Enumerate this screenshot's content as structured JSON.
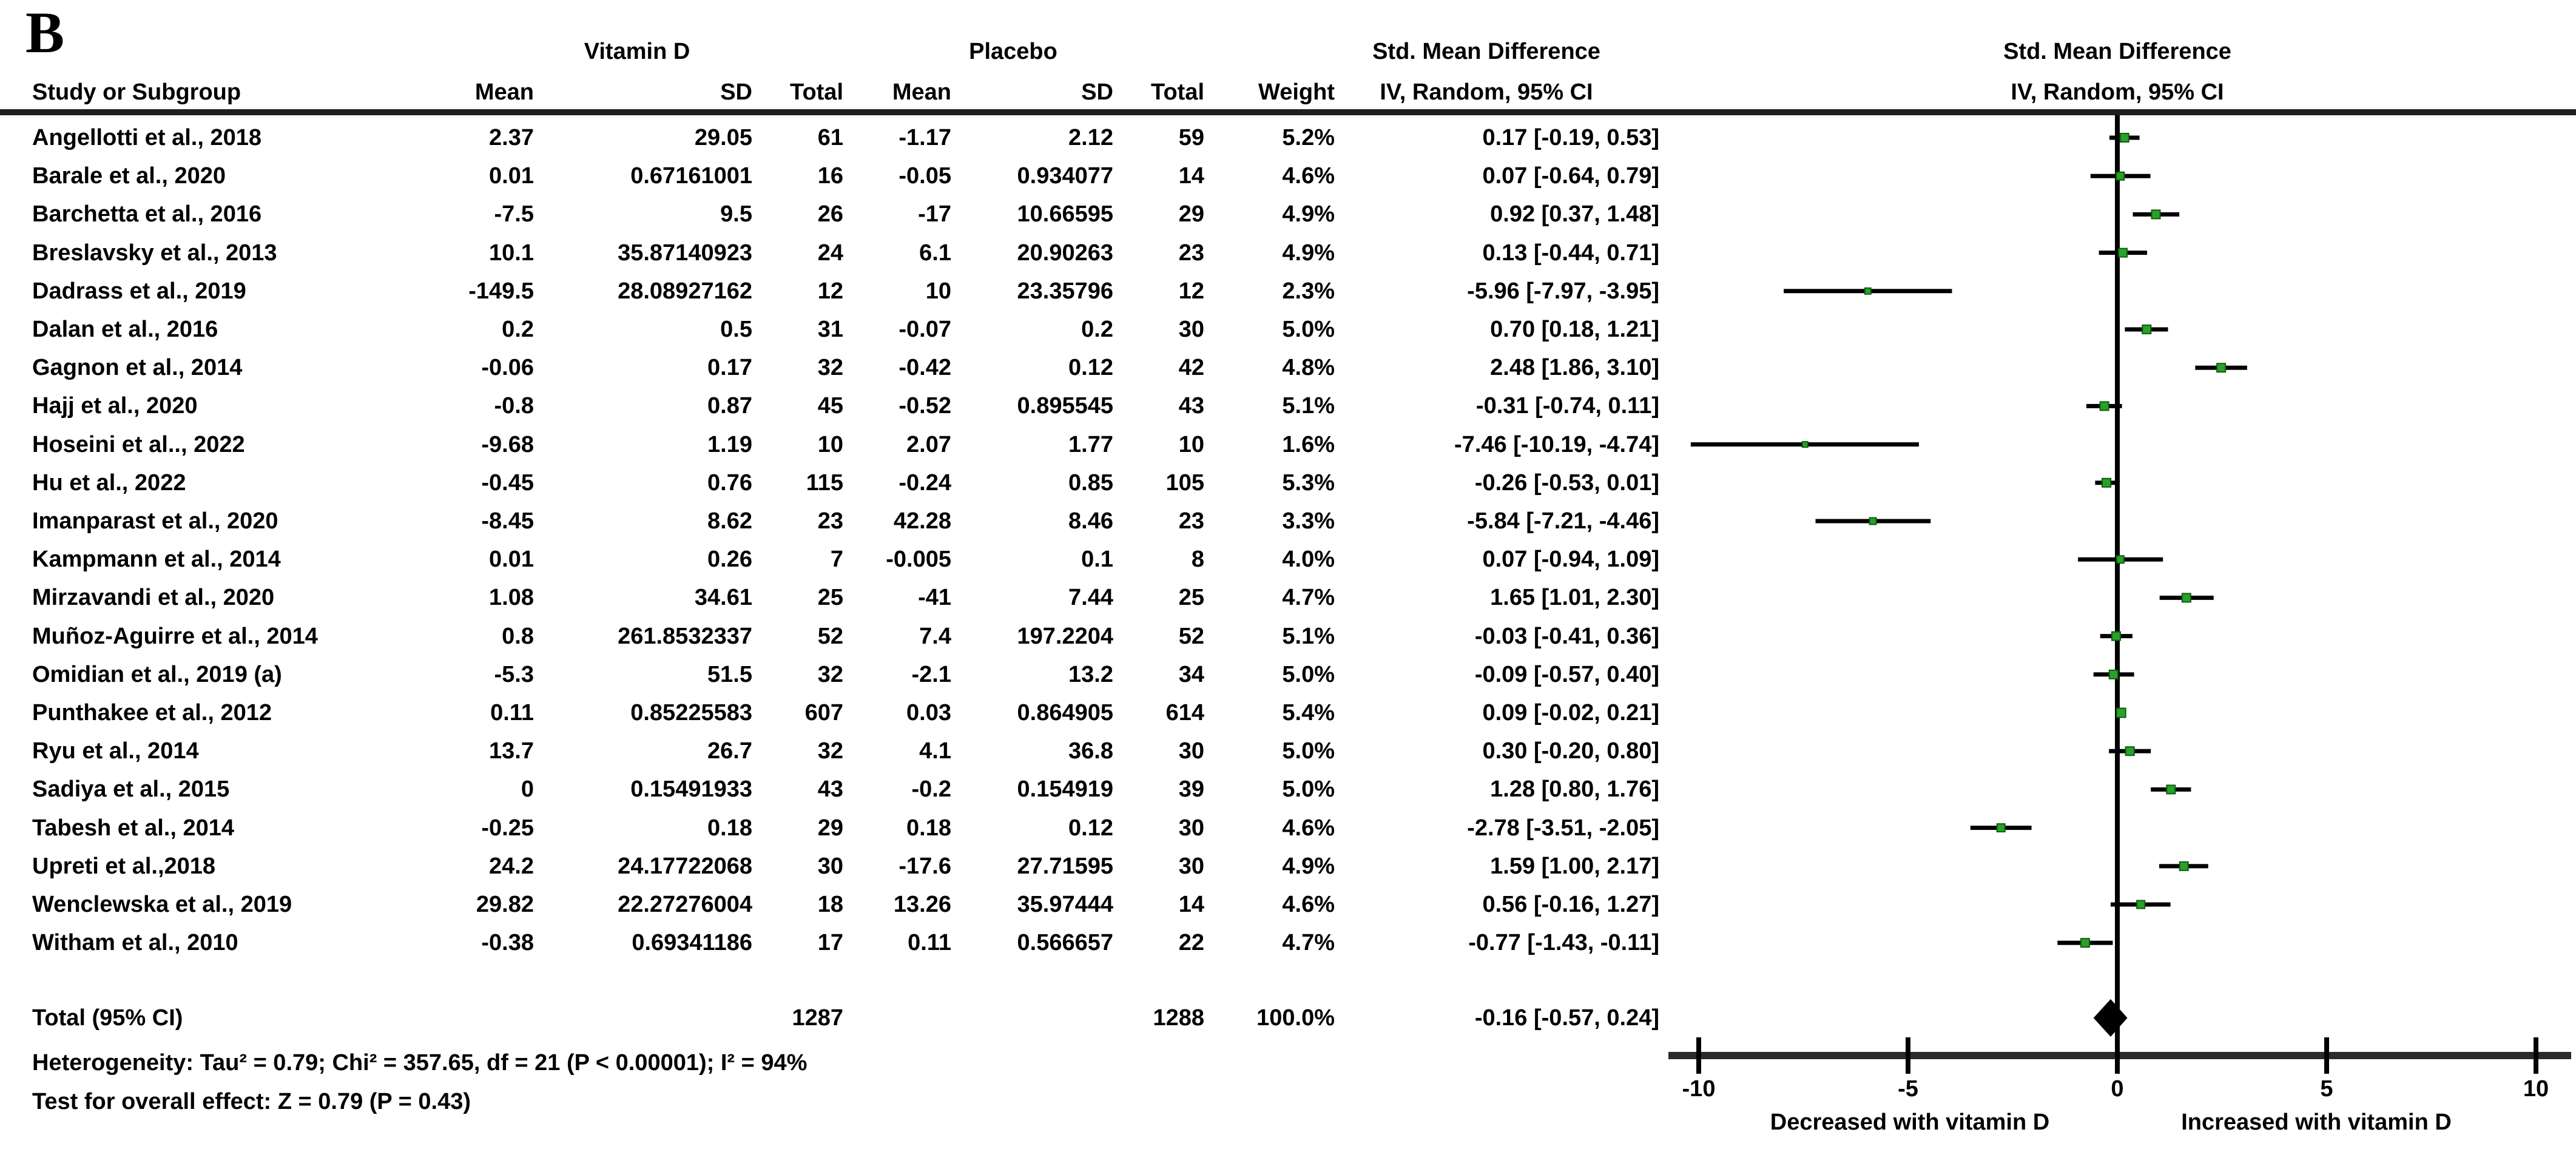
{
  "panel_label": "B",
  "colors": {
    "marker_green": "#2aa12a",
    "marker_green_border": "#0e5c0e",
    "line_black": "#000000",
    "axis_dark": "#2b2b2b",
    "rule_dark": "#1f1f1f"
  },
  "table": {
    "group_headers": {
      "vitamin_d": "Vitamin D",
      "placebo": "Placebo",
      "smd_left": "Std. Mean Difference",
      "smd_right": "Std. Mean Difference"
    },
    "column_headers": {
      "study": "Study or Subgroup",
      "mean": "Mean",
      "sd": "SD",
      "total": "Total",
      "weight": "Weight",
      "iv_left": "IV, Random, 95% CI",
      "iv_right": "IV, Random, 95% CI"
    },
    "total_row": {
      "label": "Total (95% CI)",
      "vd_total": "1287",
      "pl_total": "1288",
      "weight": "100.0%",
      "ci_text": "-0.16 [-0.57, 0.24]"
    }
  },
  "footer": {
    "heterogeneity": "Heterogeneity: Tau² = 0.79; Chi² = 357.65, df = 21 (P < 0.00001); I² = 94%",
    "overall_effect": "Test for overall effect: Z = 0.79 (P = 0.43)"
  },
  "axis": {
    "min": -10,
    "max": 10,
    "tick_values": [
      -10,
      -5,
      0,
      5,
      10
    ],
    "tick_labels": [
      "-10",
      "-5",
      "0",
      "5",
      "10"
    ],
    "left_label": "Decreased with vitamin D",
    "right_label": "Increased with vitamin D"
  },
  "chart_data": {
    "type": "scatter",
    "subtype": "forest-plot",
    "title": "Std. Mean Difference, IV, Random, 95% CI",
    "x_axis": {
      "min": -10,
      "max": 10,
      "ticks": [
        -10,
        -5,
        0,
        5,
        10
      ]
    },
    "overall": {
      "smd": -0.16,
      "lo": -0.57,
      "hi": 0.24,
      "ci_text": "-0.16 [-0.57, 0.24]",
      "weight": "100.0%"
    },
    "studies": [
      {
        "name": "Angellotti et al., 2018",
        "vd_mean": "2.37",
        "vd_sd": "29.05",
        "vd_total": "61",
        "pl_mean": "-1.17",
        "pl_sd": "2.12",
        "pl_total": "59",
        "weight": "5.2%",
        "ci_text": "0.17 [-0.19, 0.53]",
        "smd": 0.17,
        "lo": -0.19,
        "hi": 0.53
      },
      {
        "name": "Barale et al., 2020",
        "vd_mean": "0.01",
        "vd_sd": "0.67161001",
        "vd_total": "16",
        "pl_mean": "-0.05",
        "pl_sd": "0.934077",
        "pl_total": "14",
        "weight": "4.6%",
        "ci_text": "0.07 [-0.64, 0.79]",
        "smd": 0.07,
        "lo": -0.64,
        "hi": 0.79
      },
      {
        "name": "Barchetta et al., 2016",
        "vd_mean": "-7.5",
        "vd_sd": "9.5",
        "vd_total": "26",
        "pl_mean": "-17",
        "pl_sd": "10.66595",
        "pl_total": "29",
        "weight": "4.9%",
        "ci_text": "0.92 [0.37, 1.48]",
        "smd": 0.92,
        "lo": 0.37,
        "hi": 1.48
      },
      {
        "name": "Breslavsky et al., 2013",
        "vd_mean": "10.1",
        "vd_sd": "35.87140923",
        "vd_total": "24",
        "pl_mean": "6.1",
        "pl_sd": "20.90263",
        "pl_total": "23",
        "weight": "4.9%",
        "ci_text": "0.13 [-0.44, 0.71]",
        "smd": 0.13,
        "lo": -0.44,
        "hi": 0.71
      },
      {
        "name": "Dadrass et al., 2019",
        "vd_mean": "-149.5",
        "vd_sd": "28.08927162",
        "vd_total": "12",
        "pl_mean": "10",
        "pl_sd": "23.35796",
        "pl_total": "12",
        "weight": "2.3%",
        "ci_text": "-5.96 [-7.97, -3.95]",
        "smd": -5.96,
        "lo": -7.97,
        "hi": -3.95
      },
      {
        "name": "Dalan et al., 2016",
        "vd_mean": "0.2",
        "vd_sd": "0.5",
        "vd_total": "31",
        "pl_mean": "-0.07",
        "pl_sd": "0.2",
        "pl_total": "30",
        "weight": "5.0%",
        "ci_text": "0.70 [0.18, 1.21]",
        "smd": 0.7,
        "lo": 0.18,
        "hi": 1.21
      },
      {
        "name": "Gagnon et al., 2014",
        "vd_mean": "-0.06",
        "vd_sd": "0.17",
        "vd_total": "32",
        "pl_mean": "-0.42",
        "pl_sd": "0.12",
        "pl_total": "42",
        "weight": "4.8%",
        "ci_text": "2.48 [1.86, 3.10]",
        "smd": 2.48,
        "lo": 1.86,
        "hi": 3.1
      },
      {
        "name": "Hajj et al., 2020",
        "vd_mean": "-0.8",
        "vd_sd": "0.87",
        "vd_total": "45",
        "pl_mean": "-0.52",
        "pl_sd": "0.895545",
        "pl_total": "43",
        "weight": "5.1%",
        "ci_text": "-0.31 [-0.74, 0.11]",
        "smd": -0.31,
        "lo": -0.74,
        "hi": 0.11
      },
      {
        "name": "Hoseini et al.., 2022",
        "vd_mean": "-9.68",
        "vd_sd": "1.19",
        "vd_total": "10",
        "pl_mean": "2.07",
        "pl_sd": "1.77",
        "pl_total": "10",
        "weight": "1.6%",
        "ci_text": "-7.46 [-10.19, -4.74]",
        "smd": -7.46,
        "lo": -10.19,
        "hi": -4.74
      },
      {
        "name": "Hu et al., 2022",
        "vd_mean": "-0.45",
        "vd_sd": "0.76",
        "vd_total": "115",
        "pl_mean": "-0.24",
        "pl_sd": "0.85",
        "pl_total": "105",
        "weight": "5.3%",
        "ci_text": "-0.26 [-0.53, 0.01]",
        "smd": -0.26,
        "lo": -0.53,
        "hi": 0.01
      },
      {
        "name": "Imanparast et al., 2020",
        "vd_mean": "-8.45",
        "vd_sd": "8.62",
        "vd_total": "23",
        "pl_mean": "42.28",
        "pl_sd": "8.46",
        "pl_total": "23",
        "weight": "3.3%",
        "ci_text": "-5.84 [-7.21, -4.46]",
        "smd": -5.84,
        "lo": -7.21,
        "hi": -4.46
      },
      {
        "name": "Kampmann et al., 2014",
        "vd_mean": "0.01",
        "vd_sd": "0.26",
        "vd_total": "7",
        "pl_mean": "-0.005",
        "pl_sd": "0.1",
        "pl_total": "8",
        "weight": "4.0%",
        "ci_text": "0.07 [-0.94, 1.09]",
        "smd": 0.07,
        "lo": -0.94,
        "hi": 1.09
      },
      {
        "name": "Mirzavandi et al., 2020",
        "vd_mean": "1.08",
        "vd_sd": "34.61",
        "vd_total": "25",
        "pl_mean": "-41",
        "pl_sd": "7.44",
        "pl_total": "25",
        "weight": "4.7%",
        "ci_text": "1.65 [1.01, 2.30]",
        "smd": 1.65,
        "lo": 1.01,
        "hi": 2.3
      },
      {
        "name": "Muñoz-Aguirre et al., 2014",
        "vd_mean": "0.8",
        "vd_sd": "261.8532337",
        "vd_total": "52",
        "pl_mean": "7.4",
        "pl_sd": "197.2204",
        "pl_total": "52",
        "weight": "5.1%",
        "ci_text": "-0.03 [-0.41, 0.36]",
        "smd": -0.03,
        "lo": -0.41,
        "hi": 0.36
      },
      {
        "name": "Omidian et al., 2019 (a)",
        "vd_mean": "-5.3",
        "vd_sd": "51.5",
        "vd_total": "32",
        "pl_mean": "-2.1",
        "pl_sd": "13.2",
        "pl_total": "34",
        "weight": "5.0%",
        "ci_text": "-0.09 [-0.57, 0.40]",
        "smd": -0.09,
        "lo": -0.57,
        "hi": 0.4
      },
      {
        "name": "Punthakee et al., 2012",
        "vd_mean": "0.11",
        "vd_sd": "0.85225583",
        "vd_total": "607",
        "pl_mean": "0.03",
        "pl_sd": "0.864905",
        "pl_total": "614",
        "weight": "5.4%",
        "ci_text": "0.09 [-0.02, 0.21]",
        "smd": 0.09,
        "lo": -0.02,
        "hi": 0.21
      },
      {
        "name": "Ryu et al., 2014",
        "vd_mean": "13.7",
        "vd_sd": "26.7",
        "vd_total": "32",
        "pl_mean": "4.1",
        "pl_sd": "36.8",
        "pl_total": "30",
        "weight": "5.0%",
        "ci_text": "0.30 [-0.20, 0.80]",
        "smd": 0.3,
        "lo": -0.2,
        "hi": 0.8
      },
      {
        "name": "Sadiya et al., 2015",
        "vd_mean": "0",
        "vd_sd": "0.15491933",
        "vd_total": "43",
        "pl_mean": "-0.2",
        "pl_sd": "0.154919",
        "pl_total": "39",
        "weight": "5.0%",
        "ci_text": "1.28 [0.80, 1.76]",
        "smd": 1.28,
        "lo": 0.8,
        "hi": 1.76
      },
      {
        "name": "Tabesh et al., 2014",
        "vd_mean": "-0.25",
        "vd_sd": "0.18",
        "vd_total": "29",
        "pl_mean": "0.18",
        "pl_sd": "0.12",
        "pl_total": "30",
        "weight": "4.6%",
        "ci_text": "-2.78 [-3.51, -2.05]",
        "smd": -2.78,
        "lo": -3.51,
        "hi": -2.05
      },
      {
        "name": "Upreti et al.,2018",
        "vd_mean": "24.2",
        "vd_sd": "24.17722068",
        "vd_total": "30",
        "pl_mean": "-17.6",
        "pl_sd": "27.71595",
        "pl_total": "30",
        "weight": "4.9%",
        "ci_text": "1.59 [1.00, 2.17]",
        "smd": 1.59,
        "lo": 1.0,
        "hi": 2.17
      },
      {
        "name": "Wenclewska et al., 2019",
        "vd_mean": "29.82",
        "vd_sd": "22.27276004",
        "vd_total": "18",
        "pl_mean": "13.26",
        "pl_sd": "35.97444",
        "pl_total": "14",
        "weight": "4.6%",
        "ci_text": "0.56 [-0.16, 1.27]",
        "smd": 0.56,
        "lo": -0.16,
        "hi": 1.27
      },
      {
        "name": "Witham et al., 2010",
        "vd_mean": "-0.38",
        "vd_sd": "0.69341186",
        "vd_total": "17",
        "pl_mean": "0.11",
        "pl_sd": "0.566657",
        "pl_total": "22",
        "weight": "4.7%",
        "ci_text": "-0.77 [-1.43, -0.11]",
        "smd": -0.77,
        "lo": -1.43,
        "hi": -0.11
      }
    ]
  }
}
